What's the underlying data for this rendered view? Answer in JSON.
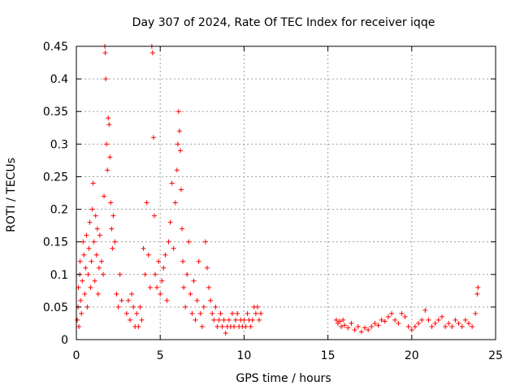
{
  "chart_data": {
    "type": "scatter",
    "title": "Day 307 of 2024, Rate Of TEC Index for receiver iqqe",
    "xlabel": "GPS time / hours",
    "ylabel": "ROTI / TECUs",
    "xlim": [
      0,
      25
    ],
    "ylim": [
      0,
      0.45
    ],
    "xticks": [
      "0",
      "5",
      "10",
      "15",
      "20",
      "25"
    ],
    "yticks": [
      "0",
      "0.05",
      "0.1",
      "0.15",
      "0.2",
      "0.25",
      "0.3",
      "0.35",
      "0.4",
      "0.45"
    ],
    "grid": true,
    "marker": "+",
    "color": "#ff0000",
    "series": [
      {
        "points": [
          [
            0.05,
            0.03
          ],
          [
            0.1,
            0.05
          ],
          [
            0.12,
            0.08
          ],
          [
            0.15,
            0.02
          ],
          [
            0.2,
            0.1
          ],
          [
            0.22,
            0.12
          ],
          [
            0.25,
            0.06
          ],
          [
            0.3,
            0.04
          ],
          [
            0.35,
            0.09
          ],
          [
            0.4,
            0.15
          ],
          [
            0.45,
            0.13
          ],
          [
            0.5,
            0.07
          ],
          [
            0.55,
            0.11
          ],
          [
            0.6,
            0.16
          ],
          [
            0.65,
            0.05
          ],
          [
            0.7,
            0.1
          ],
          [
            0.75,
            0.14
          ],
          [
            0.8,
            0.18
          ],
          [
            0.85,
            0.08
          ],
          [
            0.9,
            0.12
          ],
          [
            0.95,
            0.2
          ],
          [
            1.0,
            0.24
          ],
          [
            1.05,
            0.15
          ],
          [
            1.1,
            0.09
          ],
          [
            1.15,
            0.19
          ],
          [
            1.2,
            0.13
          ],
          [
            1.25,
            0.17
          ],
          [
            1.3,
            0.07
          ],
          [
            1.35,
            0.11
          ],
          [
            1.4,
            0.16
          ],
          [
            1.5,
            0.12
          ],
          [
            1.6,
            0.1
          ],
          [
            1.65,
            0.22
          ],
          [
            1.7,
            0.45
          ],
          [
            1.72,
            0.44
          ],
          [
            1.75,
            0.4
          ],
          [
            1.8,
            0.3
          ],
          [
            1.85,
            0.26
          ],
          [
            1.9,
            0.34
          ],
          [
            1.95,
            0.33
          ],
          [
            2.0,
            0.28
          ],
          [
            2.05,
            0.21
          ],
          [
            2.1,
            0.17
          ],
          [
            2.15,
            0.14
          ],
          [
            2.2,
            0.19
          ],
          [
            2.3,
            0.15
          ],
          [
            2.4,
            0.07
          ],
          [
            2.5,
            0.05
          ],
          [
            2.6,
            0.1
          ],
          [
            2.7,
            0.06
          ],
          [
            3.0,
            0.04
          ],
          [
            3.1,
            0.06
          ],
          [
            3.2,
            0.03
          ],
          [
            3.3,
            0.07
          ],
          [
            3.4,
            0.05
          ],
          [
            3.5,
            0.02
          ],
          [
            3.6,
            0.04
          ],
          [
            3.7,
            0.02
          ],
          [
            3.8,
            0.05
          ],
          [
            3.9,
            0.03
          ],
          [
            4.0,
            0.14
          ],
          [
            4.1,
            0.1
          ],
          [
            4.2,
            0.21
          ],
          [
            4.3,
            0.13
          ],
          [
            4.4,
            0.08
          ],
          [
            4.5,
            0.45
          ],
          [
            4.55,
            0.44
          ],
          [
            4.6,
            0.31
          ],
          [
            4.65,
            0.19
          ],
          [
            4.7,
            0.1
          ],
          [
            4.8,
            0.08
          ],
          [
            4.9,
            0.12
          ],
          [
            5.0,
            0.07
          ],
          [
            5.1,
            0.09
          ],
          [
            5.2,
            0.11
          ],
          [
            5.3,
            0.13
          ],
          [
            5.4,
            0.06
          ],
          [
            5.5,
            0.15
          ],
          [
            5.6,
            0.18
          ],
          [
            5.7,
            0.24
          ],
          [
            5.8,
            0.14
          ],
          [
            5.9,
            0.21
          ],
          [
            6.0,
            0.26
          ],
          [
            6.05,
            0.3
          ],
          [
            6.1,
            0.35
          ],
          [
            6.15,
            0.32
          ],
          [
            6.2,
            0.29
          ],
          [
            6.25,
            0.23
          ],
          [
            6.3,
            0.17
          ],
          [
            6.35,
            0.12
          ],
          [
            6.4,
            0.08
          ],
          [
            6.5,
            0.05
          ],
          [
            6.6,
            0.1
          ],
          [
            6.7,
            0.15
          ],
          [
            6.8,
            0.07
          ],
          [
            6.9,
            0.04
          ],
          [
            7.0,
            0.09
          ],
          [
            7.1,
            0.03
          ],
          [
            7.2,
            0.06
          ],
          [
            7.3,
            0.12
          ],
          [
            7.4,
            0.04
          ],
          [
            7.5,
            0.02
          ],
          [
            7.6,
            0.05
          ],
          [
            7.7,
            0.15
          ],
          [
            7.8,
            0.11
          ],
          [
            7.9,
            0.08
          ],
          [
            8.0,
            0.06
          ],
          [
            8.1,
            0.04
          ],
          [
            8.2,
            0.03
          ],
          [
            8.3,
            0.05
          ],
          [
            8.4,
            0.02
          ],
          [
            8.5,
            0.03
          ],
          [
            8.6,
            0.04
          ],
          [
            8.7,
            0.02
          ],
          [
            8.8,
            0.03
          ],
          [
            8.9,
            0.01
          ],
          [
            9.0,
            0.02
          ],
          [
            9.1,
            0.03
          ],
          [
            9.2,
            0.02
          ],
          [
            9.3,
            0.04
          ],
          [
            9.4,
            0.02
          ],
          [
            9.5,
            0.03
          ],
          [
            9.6,
            0.04
          ],
          [
            9.7,
            0.02
          ],
          [
            9.8,
            0.03
          ],
          [
            9.9,
            0.02
          ],
          [
            10.0,
            0.03
          ],
          [
            10.1,
            0.02
          ],
          [
            10.2,
            0.04
          ],
          [
            10.3,
            0.03
          ],
          [
            10.4,
            0.02
          ],
          [
            10.5,
            0.03
          ],
          [
            10.6,
            0.05
          ],
          [
            10.7,
            0.04
          ],
          [
            10.8,
            0.05
          ],
          [
            10.9,
            0.03
          ],
          [
            11.0,
            0.04
          ],
          [
            15.5,
            0.03
          ],
          [
            15.6,
            0.025
          ],
          [
            15.7,
            0.028
          ],
          [
            15.8,
            0.02
          ],
          [
            15.9,
            0.03
          ],
          [
            16.0,
            0.022
          ],
          [
            16.2,
            0.018
          ],
          [
            16.4,
            0.025
          ],
          [
            16.6,
            0.015
          ],
          [
            16.8,
            0.02
          ],
          [
            17.0,
            0.012
          ],
          [
            17.2,
            0.018
          ],
          [
            17.4,
            0.015
          ],
          [
            17.6,
            0.02
          ],
          [
            17.8,
            0.025
          ],
          [
            18.0,
            0.022
          ],
          [
            18.2,
            0.03
          ],
          [
            18.4,
            0.028
          ],
          [
            18.6,
            0.035
          ],
          [
            18.8,
            0.04
          ],
          [
            19.0,
            0.03
          ],
          [
            19.2,
            0.025
          ],
          [
            19.4,
            0.04
          ],
          [
            19.6,
            0.035
          ],
          [
            19.8,
            0.02
          ],
          [
            20.0,
            0.015
          ],
          [
            20.2,
            0.02
          ],
          [
            20.4,
            0.025
          ],
          [
            20.6,
            0.03
          ],
          [
            20.8,
            0.045
          ],
          [
            21.0,
            0.03
          ],
          [
            21.2,
            0.02
          ],
          [
            21.4,
            0.025
          ],
          [
            21.6,
            0.03
          ],
          [
            21.8,
            0.035
          ],
          [
            22.0,
            0.02
          ],
          [
            22.2,
            0.025
          ],
          [
            22.4,
            0.02
          ],
          [
            22.6,
            0.03
          ],
          [
            22.8,
            0.025
          ],
          [
            23.0,
            0.02
          ],
          [
            23.2,
            0.03
          ],
          [
            23.4,
            0.025
          ],
          [
            23.6,
            0.02
          ],
          [
            23.8,
            0.04
          ],
          [
            23.9,
            0.07
          ],
          [
            23.95,
            0.08
          ]
        ]
      }
    ]
  }
}
